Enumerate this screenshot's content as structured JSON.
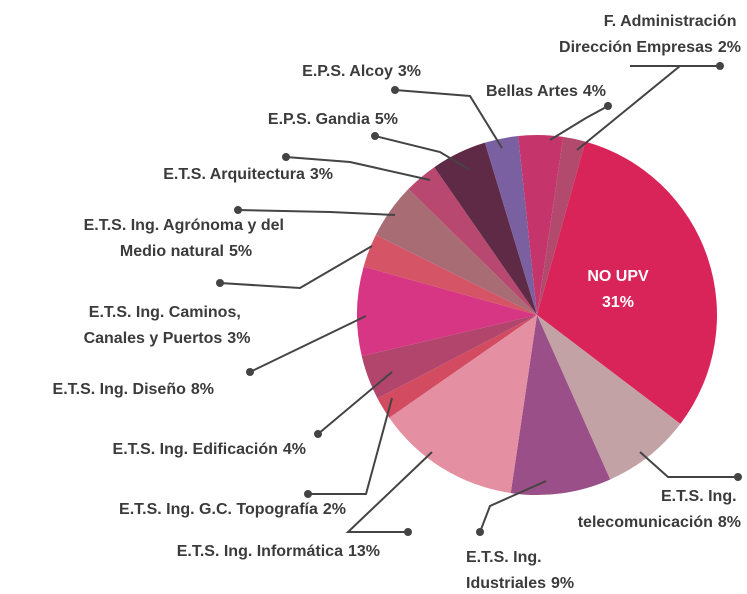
{
  "chart_data": {
    "type": "pie",
    "categories": [
      "Bellas Artes",
      "F. Administración Dirección Empresas",
      "NO UPV",
      "E.T.S. Ing. telecomunicación",
      "E.T.S. Ing. Idustriales",
      "E.T.S. Ing. Informática",
      "E.T.S. Ing. G.C. Topografía",
      "E.T.S. Ing. Edificación",
      "E.T.S. Ing. Diseño",
      "E.T.S. Ing. Caminos, Canales y Puertos",
      "E.T.S. Ing. Agrónoma y del Medio natural",
      "E.T.S. Arquitectura",
      "E.P.S. Gandia",
      "E.P.S. Alcoy"
    ],
    "values": [
      4,
      2,
      31,
      8,
      9,
      13,
      2,
      4,
      8,
      3,
      5,
      3,
      5,
      3
    ],
    "value_labels": [
      "4%",
      "2%",
      "31%",
      "8%",
      "9%",
      "13%",
      "2%",
      "4%",
      "8%",
      "3%",
      "5%",
      "3%",
      "5%",
      "3%"
    ],
    "colors": [
      "#c5356c",
      "#b24a6e",
      "#d9245a",
      "#c3a2a6",
      "#9b4f88",
      "#e48fa2",
      "#d24b60",
      "#b1456c",
      "#d63683",
      "#d55466",
      "#a86c75",
      "#b8486f",
      "#5f2a45",
      "#7a60a0"
    ]
  }
}
